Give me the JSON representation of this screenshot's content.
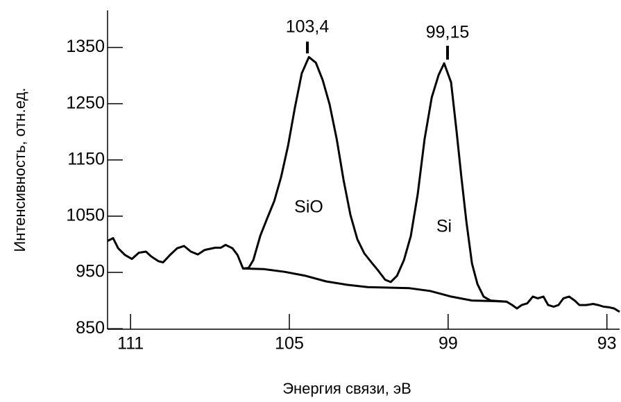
{
  "chart_data": {
    "type": "line",
    "x_label": "Энергия связи, эВ",
    "y_label": "Интенсивность, отн.ед.",
    "xlim": [
      111.87,
      92.52
    ],
    "xticks": [
      111,
      105,
      99,
      93
    ],
    "ylim": [
      849,
      1416
    ],
    "yticks": [
      850,
      950,
      1050,
      1150,
      1250,
      1350
    ],
    "annotations": [
      "103,4",
      "99,15",
      "SiO",
      "Si"
    ],
    "series": [
      {
        "color": "#000000",
        "x": [
          111.87,
          111.66,
          111.47,
          111.21,
          110.95,
          110.69,
          110.42,
          110.21,
          109.95,
          109.77,
          109.51,
          109.24,
          108.98,
          108.72,
          108.46,
          108.2,
          107.8,
          107.59,
          107.41,
          107.15,
          106.96,
          106.75,
          106.54,
          106.36,
          106.1,
          105.84,
          105.57,
          105.31,
          105.05,
          104.79,
          104.53,
          104.26,
          104.0,
          103.74,
          103.48,
          103.21,
          102.95,
          102.69,
          102.43,
          102.17,
          101.9,
          101.64,
          101.38,
          101.17,
          100.93,
          100.67,
          100.41,
          100.15,
          99.89,
          99.62,
          99.36,
          99.15,
          98.89,
          98.68,
          98.5,
          98.31,
          98.1,
          97.89,
          97.66,
          97.4,
          97.11,
          96.79,
          96.58,
          96.4,
          96.22,
          96.01,
          95.8,
          95.61,
          95.4,
          95.22,
          95.01,
          94.83,
          94.64,
          94.43,
          94.22,
          94.04,
          93.78,
          93.52,
          93.33,
          93.12,
          92.91,
          92.73,
          92.52
        ],
        "values": [
          1006,
          1011,
          993,
          981,
          974,
          985,
          987,
          978,
          970,
          968,
          981,
          993,
          997,
          987,
          982,
          990,
          994,
          994,
          999,
          993,
          981,
          957,
          958,
          972,
          1015,
          1046,
          1077,
          1120,
          1175,
          1243,
          1304,
          1333,
          1323,
          1292,
          1249,
          1187,
          1114,
          1052,
          1009,
          984,
          968,
          953,
          937,
          933,
          944,
          972,
          1015,
          1089,
          1187,
          1261,
          1301,
          1322,
          1288,
          1200,
          1120,
          1040,
          966,
          929,
          907,
          900,
          899,
          898,
          892,
          886,
          892,
          895,
          907,
          904,
          907,
          892,
          889,
          892,
          904,
          907,
          900,
          892,
          892,
          894,
          892,
          889,
          888,
          886,
          880
        ]
      },
      {
        "color": "#000000",
        "x": [
          106.75,
          105.97,
          105.18,
          104.39,
          103.61,
          102.82,
          102.04,
          101.25,
          100.46,
          99.68,
          98.89,
          98.1,
          97.32,
          96.79
        ],
        "values": [
          957,
          956,
          951,
          944,
          934,
          928,
          924,
          923,
          922,
          917,
          907,
          900,
          899,
          898
        ]
      }
    ]
  }
}
